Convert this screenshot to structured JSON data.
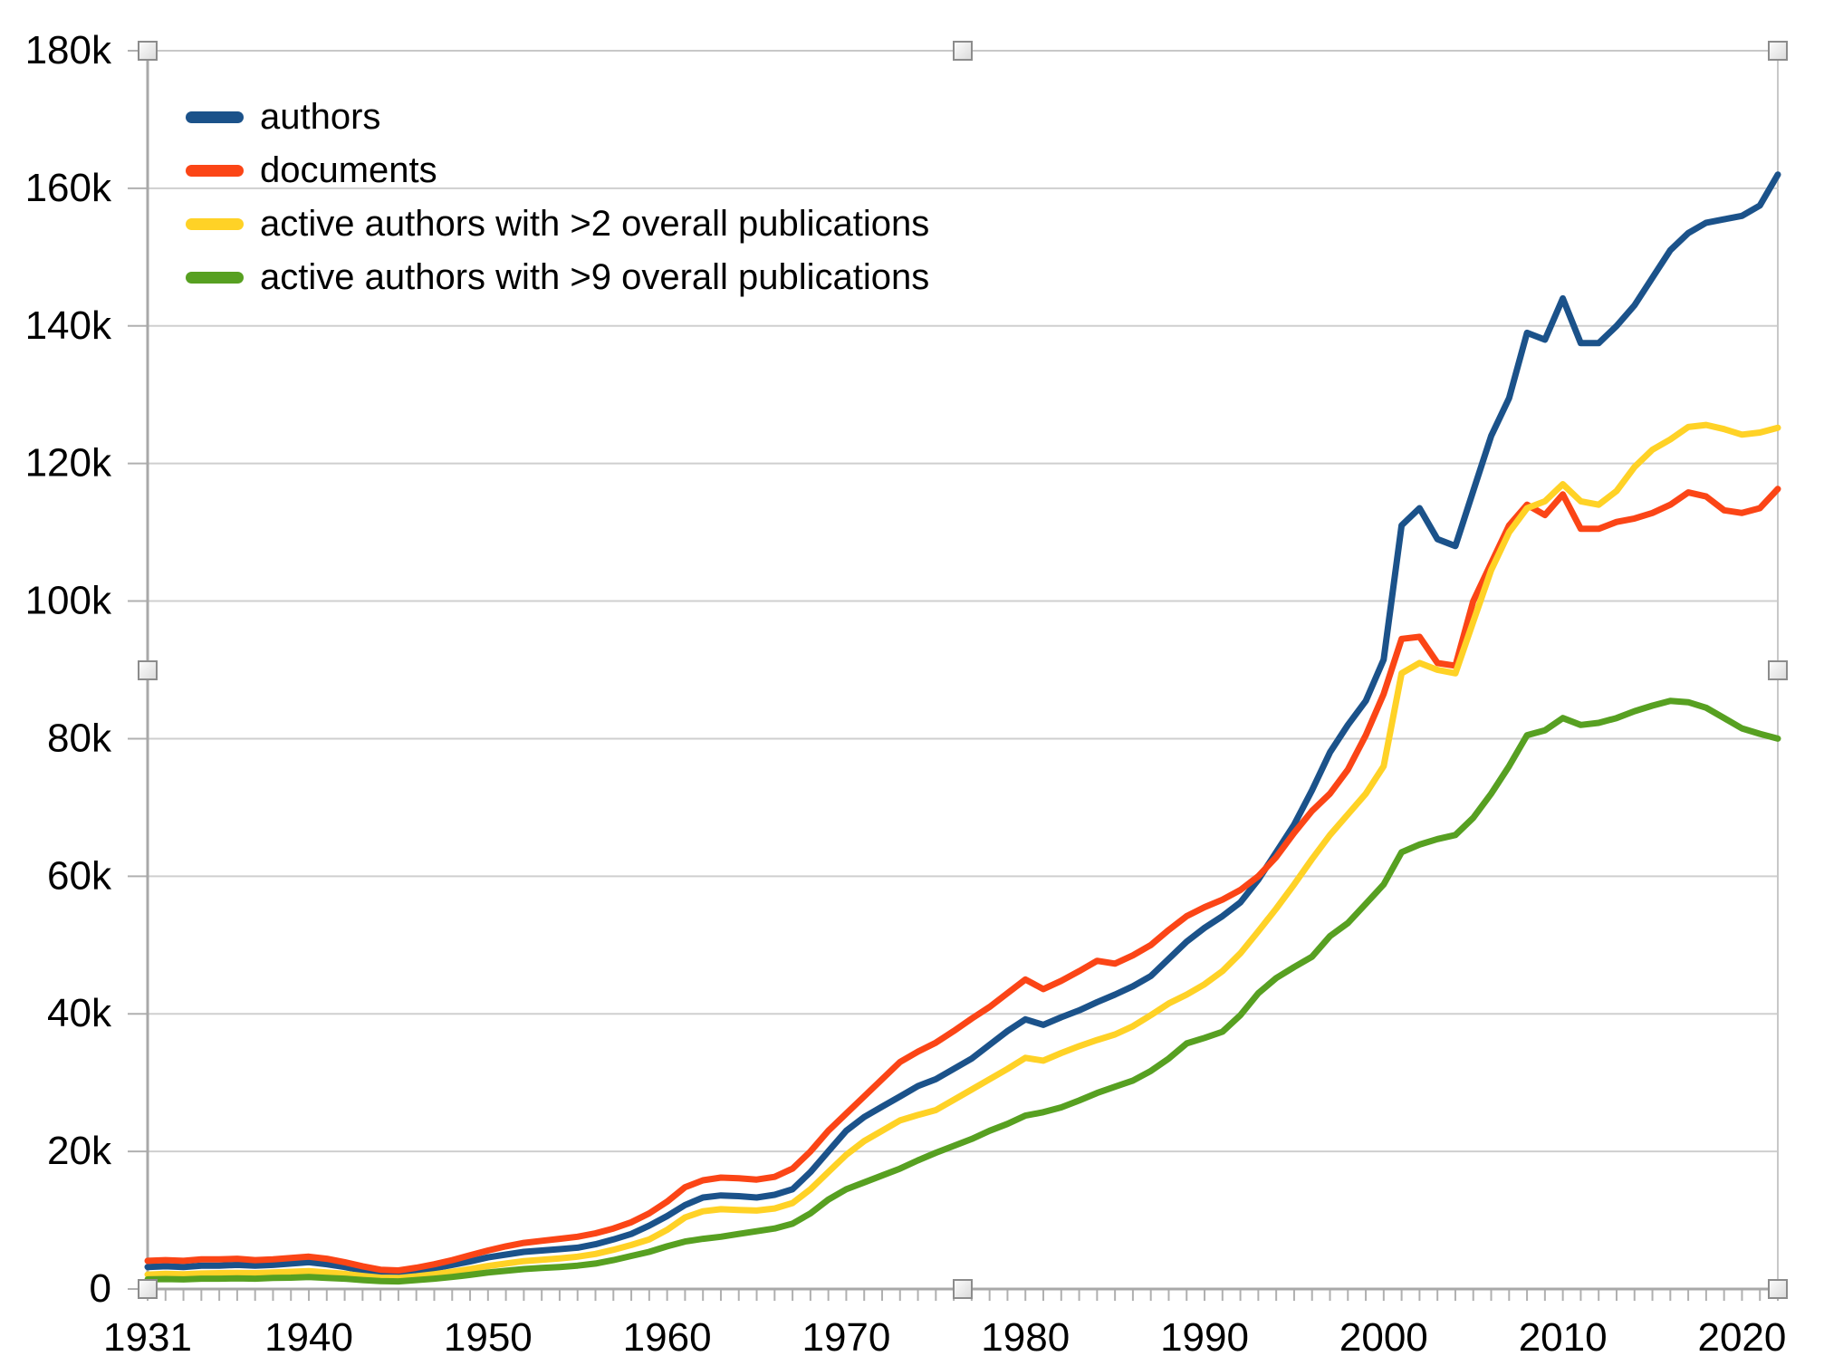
{
  "chart_data": {
    "type": "line",
    "title": "",
    "xlabel": "",
    "ylabel": "",
    "unit": "thousands (k)",
    "x_range": [
      1931,
      2022
    ],
    "ylim_k": [
      0,
      180
    ],
    "grid": "horizontal gridlines every 20k",
    "legend_position": "top-left inside plot",
    "x_tick_labels": [
      "1931",
      "1940",
      "1950",
      "1960",
      "1970",
      "1980",
      "1990",
      "2000",
      "2010",
      "2020"
    ],
    "y_tick_labels": [
      "0",
      "20k",
      "40k",
      "60k",
      "80k",
      "100k",
      "120k",
      "140k",
      "160k",
      "180k"
    ],
    "x_years": "1931 through 2022, one data point per year",
    "series": [
      {
        "name": "authors",
        "color": "#1b528a",
        "values_k": [
          3.2,
          3.3,
          3.2,
          3.4,
          3.4,
          3.5,
          3.4,
          3.5,
          3.7,
          3.9,
          3.6,
          3.2,
          2.7,
          2.3,
          2.2,
          2.6,
          3.0,
          3.5,
          4.0,
          4.6,
          5.0,
          5.4,
          5.6,
          5.8,
          6.0,
          6.5,
          7.2,
          8.0,
          9.2,
          10.6,
          12.2,
          13.3,
          13.6,
          13.5,
          13.3,
          13.7,
          14.5,
          17.0,
          20.0,
          23.0,
          25.0,
          26.5,
          28.0,
          29.5,
          30.5,
          32.0,
          33.5,
          35.5,
          37.5,
          39.2,
          38.4,
          39.5,
          40.5,
          41.7,
          42.8,
          44.0,
          45.5,
          48.0,
          50.5,
          52.5,
          54.2,
          56.2,
          59.5,
          63.5,
          67.5,
          72.5,
          78.0,
          82.0,
          85.5,
          91.5,
          111.0,
          113.5,
          109.0,
          108.0,
          116.0,
          124.0,
          129.5,
          139.0,
          138.0,
          144.0,
          137.5,
          137.5,
          140.0,
          143.0,
          147.0,
          151.0,
          153.5,
          155.0,
          155.5,
          156.0,
          157.5,
          162.0
        ]
      },
      {
        "name": "documents",
        "color": "#fb4516",
        "values_k": [
          4.1,
          4.2,
          4.1,
          4.3,
          4.3,
          4.4,
          4.2,
          4.3,
          4.5,
          4.7,
          4.4,
          3.9,
          3.3,
          2.8,
          2.7,
          3.1,
          3.6,
          4.2,
          4.9,
          5.6,
          6.2,
          6.7,
          7.0,
          7.3,
          7.6,
          8.1,
          8.8,
          9.7,
          11.0,
          12.7,
          14.8,
          15.8,
          16.2,
          16.1,
          15.9,
          16.3,
          17.5,
          20.0,
          23.0,
          25.5,
          28.0,
          30.5,
          33.0,
          34.5,
          35.8,
          37.5,
          39.3,
          41.0,
          43.0,
          45.0,
          43.6,
          44.8,
          46.2,
          47.7,
          47.3,
          48.5,
          50.0,
          52.2,
          54.2,
          55.5,
          56.6,
          58.0,
          60.0,
          62.8,
          66.3,
          69.5,
          72.0,
          75.5,
          80.5,
          86.5,
          94.5,
          94.8,
          91.0,
          90.6,
          100.0,
          105.5,
          111.0,
          114.0,
          112.5,
          115.5,
          110.5,
          110.5,
          111.5,
          112.0,
          112.8,
          114.0,
          115.8,
          115.2,
          113.2,
          112.8,
          113.5,
          116.3
        ]
      },
      {
        "name": "active authors with >2 overall publications",
        "color": "#ffd226",
        "values_k": [
          2.1,
          2.2,
          2.15,
          2.25,
          2.3,
          2.35,
          2.3,
          2.4,
          2.5,
          2.6,
          2.4,
          2.2,
          1.9,
          1.65,
          1.6,
          1.85,
          2.15,
          2.5,
          2.9,
          3.35,
          3.7,
          4.05,
          4.25,
          4.45,
          4.7,
          5.1,
          5.7,
          6.4,
          7.2,
          8.6,
          10.4,
          11.3,
          11.6,
          11.5,
          11.4,
          11.7,
          12.5,
          14.5,
          17.0,
          19.5,
          21.5,
          23.0,
          24.5,
          25.3,
          26.0,
          27.5,
          29.0,
          30.5,
          32.0,
          33.6,
          33.2,
          34.3,
          35.3,
          36.2,
          37.0,
          38.2,
          39.8,
          41.5,
          42.8,
          44.3,
          46.2,
          48.8,
          52.0,
          55.3,
          58.8,
          62.5,
          66.0,
          69.0,
          72.0,
          76.0,
          89.5,
          91.0,
          90.0,
          89.5,
          97.0,
          104.5,
          110.0,
          113.5,
          114.5,
          117.0,
          114.5,
          114.0,
          116.0,
          119.5,
          122.0,
          123.5,
          125.3,
          125.6,
          125.0,
          124.2,
          124.5,
          125.2
        ]
      },
      {
        "name": "active authors with >9 overall publications",
        "color": "#57a021",
        "values_k": [
          1.4,
          1.45,
          1.4,
          1.5,
          1.5,
          1.55,
          1.5,
          1.6,
          1.65,
          1.75,
          1.6,
          1.5,
          1.3,
          1.15,
          1.1,
          1.3,
          1.5,
          1.75,
          2.05,
          2.4,
          2.65,
          2.9,
          3.05,
          3.2,
          3.4,
          3.7,
          4.2,
          4.8,
          5.4,
          6.2,
          6.9,
          7.3,
          7.6,
          8.0,
          8.4,
          8.8,
          9.5,
          11.0,
          13.0,
          14.5,
          15.5,
          16.5,
          17.5,
          18.7,
          19.8,
          20.8,
          21.8,
          23.0,
          24.0,
          25.2,
          25.7,
          26.4,
          27.4,
          28.5,
          29.4,
          30.3,
          31.7,
          33.5,
          35.7,
          36.5,
          37.4,
          39.8,
          43.0,
          45.2,
          46.8,
          48.3,
          51.3,
          53.2,
          56.0,
          58.8,
          63.5,
          64.6,
          65.4,
          66.0,
          68.5,
          72.0,
          76.0,
          80.5,
          81.2,
          83.0,
          82.0,
          82.3,
          83.0,
          84.0,
          84.8,
          85.5,
          85.3,
          84.5,
          83.0,
          81.5,
          80.7,
          80.0
        ]
      }
    ]
  },
  "legend": {
    "items": [
      {
        "label": "authors",
        "color": "#1b528a"
      },
      {
        "label": "documents",
        "color": "#fb4516"
      },
      {
        "label": "active authors with >2 overall publications",
        "color": "#ffd226"
      },
      {
        "label": "active authors with >9 overall publications",
        "color": "#57a021"
      }
    ]
  }
}
